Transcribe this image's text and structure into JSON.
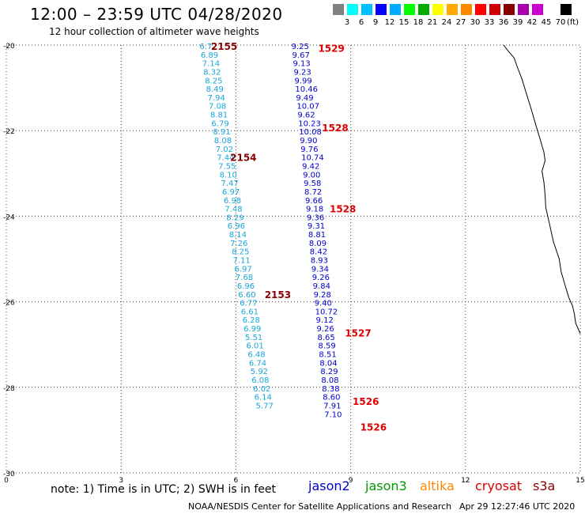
{
  "title": "12:00 – 23:59 UTC 04/28/2020",
  "subtitle": "12 hour collection of altimeter wave heights",
  "legend": {
    "colors": [
      "#808080",
      "#00ffff",
      "#00bfff",
      "#0000ff",
      "#00aaff",
      "#00ff00",
      "#00aa00",
      "#ffff00",
      "#ffaa00",
      "#ff8800",
      "#ff0000",
      "#cc0000",
      "#880000",
      "#aa00aa",
      "#cc00cc",
      "#ffffff",
      "#000000"
    ],
    "labels": [
      "3",
      "6",
      "9",
      "12",
      "15",
      "18",
      "21",
      "24",
      "27",
      "30",
      "33",
      "36",
      "39",
      "42",
      "45",
      "70"
    ],
    "unit": "(ft)"
  },
  "axes": {
    "x_ticks": [
      "0",
      "3",
      "6",
      "9",
      "12",
      "15"
    ],
    "y_ticks": [
      "-20",
      "-22",
      "-24",
      "-26",
      "-28",
      "-30"
    ]
  },
  "tracks": [
    {
      "satellite": "cryosat",
      "color": "#18a6d8",
      "values": [
        {
          "lon": 5.05,
          "lat": -20.0,
          "swh": "6.77"
        },
        {
          "lon": 5.08,
          "lat": -20.2,
          "swh": "6.89"
        },
        {
          "lon": 5.12,
          "lat": -20.4,
          "swh": "7.14"
        },
        {
          "lon": 5.15,
          "lat": -20.6,
          "swh": "8.32"
        },
        {
          "lon": 5.19,
          "lat": -20.8,
          "swh": "8.25"
        },
        {
          "lon": 5.22,
          "lat": -21.0,
          "swh": "8.49"
        },
        {
          "lon": 5.26,
          "lat": -21.2,
          "swh": "7.94"
        },
        {
          "lon": 5.29,
          "lat": -21.4,
          "swh": "7.08"
        },
        {
          "lon": 5.33,
          "lat": -21.6,
          "swh": "8.81"
        },
        {
          "lon": 5.36,
          "lat": -21.8,
          "swh": "6.79"
        },
        {
          "lon": 5.4,
          "lat": -22.0,
          "swh": "8.91"
        },
        {
          "lon": 5.43,
          "lat": -22.2,
          "swh": "8.08"
        },
        {
          "lon": 5.47,
          "lat": -22.4,
          "swh": "7.02"
        },
        {
          "lon": 5.5,
          "lat": -22.6,
          "swh": "7.44"
        },
        {
          "lon": 5.54,
          "lat": -22.8,
          "swh": "7.55"
        },
        {
          "lon": 5.57,
          "lat": -23.0,
          "swh": "8.10"
        },
        {
          "lon": 5.61,
          "lat": -23.2,
          "swh": "7.47"
        },
        {
          "lon": 5.64,
          "lat": -23.4,
          "swh": "6.97"
        },
        {
          "lon": 5.68,
          "lat": -23.6,
          "swh": "6.98"
        },
        {
          "lon": 5.71,
          "lat": -23.8,
          "swh": "7.48"
        },
        {
          "lon": 5.75,
          "lat": -24.0,
          "swh": "8.29"
        },
        {
          "lon": 5.78,
          "lat": -24.2,
          "swh": "6.96"
        },
        {
          "lon": 5.82,
          "lat": -24.4,
          "swh": "8.14"
        },
        {
          "lon": 5.85,
          "lat": -24.6,
          "swh": "7.26"
        },
        {
          "lon": 5.89,
          "lat": -24.8,
          "swh": "8.25"
        },
        {
          "lon": 5.92,
          "lat": -25.0,
          "swh": "7.11"
        },
        {
          "lon": 5.96,
          "lat": -25.2,
          "swh": "6.97"
        },
        {
          "lon": 5.99,
          "lat": -25.4,
          "swh": "7.68"
        },
        {
          "lon": 6.03,
          "lat": -25.6,
          "swh": "6.96"
        },
        {
          "lon": 6.06,
          "lat": -25.8,
          "swh": "6.60"
        },
        {
          "lon": 6.1,
          "lat": -26.0,
          "swh": "6.77"
        },
        {
          "lon": 6.13,
          "lat": -26.2,
          "swh": "6.61"
        },
        {
          "lon": 6.17,
          "lat": -26.4,
          "swh": "6.28"
        },
        {
          "lon": 6.2,
          "lat": -26.6,
          "swh": "6.99"
        },
        {
          "lon": 6.24,
          "lat": -26.8,
          "swh": "5.51"
        },
        {
          "lon": 6.27,
          "lat": -27.0,
          "swh": "6.01"
        },
        {
          "lon": 6.31,
          "lat": -27.2,
          "swh": "6.48"
        },
        {
          "lon": 6.34,
          "lat": -27.4,
          "swh": "6.74"
        },
        {
          "lon": 6.38,
          "lat": -27.6,
          "swh": "5.92"
        },
        {
          "lon": 6.41,
          "lat": -27.8,
          "swh": "6.08"
        },
        {
          "lon": 6.45,
          "lat": -28.0,
          "swh": "6.02"
        },
        {
          "lon": 6.48,
          "lat": -28.2,
          "swh": "6.14"
        },
        {
          "lon": 6.52,
          "lat": -28.4,
          "swh": "5.77"
        }
      ]
    },
    {
      "satellite": "jason2",
      "color": "#0000cc",
      "values": [
        {
          "lon": 7.45,
          "lat": -20.0,
          "swh": "9.25"
        },
        {
          "lon": 7.47,
          "lat": -20.2,
          "swh": "9.67"
        },
        {
          "lon": 7.49,
          "lat": -20.4,
          "swh": "9.13"
        },
        {
          "lon": 7.51,
          "lat": -20.6,
          "swh": "9.23"
        },
        {
          "lon": 7.53,
          "lat": -20.8,
          "swh": "9.99"
        },
        {
          "lon": 7.55,
          "lat": -21.0,
          "swh": "10.46"
        },
        {
          "lon": 7.57,
          "lat": -21.2,
          "swh": "9.49"
        },
        {
          "lon": 7.59,
          "lat": -21.4,
          "swh": "10.07"
        },
        {
          "lon": 7.61,
          "lat": -21.6,
          "swh": "9.62"
        },
        {
          "lon": 7.63,
          "lat": -21.8,
          "swh": "10.23"
        },
        {
          "lon": 7.65,
          "lat": -22.0,
          "swh": "10.08"
        },
        {
          "lon": 7.67,
          "lat": -22.2,
          "swh": "9.90"
        },
        {
          "lon": 7.69,
          "lat": -22.4,
          "swh": "9.76"
        },
        {
          "lon": 7.71,
          "lat": -22.6,
          "swh": "10.74"
        },
        {
          "lon": 7.73,
          "lat": -22.8,
          "swh": "9.42"
        },
        {
          "lon": 7.75,
          "lat": -23.0,
          "swh": "9.00"
        },
        {
          "lon": 7.77,
          "lat": -23.2,
          "swh": "9.58"
        },
        {
          "lon": 7.79,
          "lat": -23.4,
          "swh": "8.72"
        },
        {
          "lon": 7.81,
          "lat": -23.6,
          "swh": "9.66"
        },
        {
          "lon": 7.83,
          "lat": -23.8,
          "swh": "9.18"
        },
        {
          "lon": 7.85,
          "lat": -24.0,
          "swh": "9.36"
        },
        {
          "lon": 7.87,
          "lat": -24.2,
          "swh": "9.31"
        },
        {
          "lon": 7.89,
          "lat": -24.4,
          "swh": "8.81"
        },
        {
          "lon": 7.91,
          "lat": -24.6,
          "swh": "8.09"
        },
        {
          "lon": 7.93,
          "lat": -24.8,
          "swh": "8.42"
        },
        {
          "lon": 7.95,
          "lat": -25.0,
          "swh": "8.93"
        },
        {
          "lon": 7.97,
          "lat": -25.2,
          "swh": "9.34"
        },
        {
          "lon": 7.99,
          "lat": -25.4,
          "swh": "9.26"
        },
        {
          "lon": 8.01,
          "lat": -25.6,
          "swh": "9.84"
        },
        {
          "lon": 8.03,
          "lat": -25.8,
          "swh": "9.28"
        },
        {
          "lon": 8.05,
          "lat": -26.0,
          "swh": "9.40"
        },
        {
          "lon": 8.07,
          "lat": -26.2,
          "swh": "10.72"
        },
        {
          "lon": 8.09,
          "lat": -26.4,
          "swh": "9.12"
        },
        {
          "lon": 8.11,
          "lat": -26.6,
          "swh": "9.26"
        },
        {
          "lon": 8.13,
          "lat": -26.8,
          "swh": "8.65"
        },
        {
          "lon": 8.15,
          "lat": -27.0,
          "swh": "8.59"
        },
        {
          "lon": 8.17,
          "lat": -27.2,
          "swh": "8.51"
        },
        {
          "lon": 8.19,
          "lat": -27.4,
          "swh": "8.04"
        },
        {
          "lon": 8.21,
          "lat": -27.6,
          "swh": "8.29"
        },
        {
          "lon": 8.23,
          "lat": -27.8,
          "swh": "8.08"
        },
        {
          "lon": 8.25,
          "lat": -28.0,
          "swh": "8.38"
        },
        {
          "lon": 8.27,
          "lat": -28.2,
          "swh": "8.60"
        },
        {
          "lon": 8.29,
          "lat": -28.4,
          "swh": "7.91"
        },
        {
          "lon": 8.31,
          "lat": -28.6,
          "swh": "7.10"
        }
      ]
    }
  ],
  "time_labels": [
    {
      "text": "2155",
      "lon": 5.35,
      "lat": -20.0,
      "color": "#8b0000"
    },
    {
      "text": "2154",
      "lon": 5.85,
      "lat": -22.6,
      "color": "#8b0000"
    },
    {
      "text": "2153",
      "lon": 6.75,
      "lat": -25.8,
      "color": "#8b0000"
    },
    {
      "text": "1529",
      "lon": 8.15,
      "lat": -20.05,
      "color": "#dd0000"
    },
    {
      "text": "1528",
      "lon": 8.25,
      "lat": -21.9,
      "color": "#dd0000"
    },
    {
      "text": "1528",
      "lon": 8.45,
      "lat": -23.8,
      "color": "#dd0000"
    },
    {
      "text": "1527",
      "lon": 8.85,
      "lat": -26.7,
      "color": "#dd0000"
    },
    {
      "text": "1526",
      "lon": 9.05,
      "lat": -28.3,
      "color": "#dd0000"
    },
    {
      "text": "1526",
      "lon": 9.25,
      "lat": -28.9,
      "color": "#dd0000"
    }
  ],
  "note": "note:  1) Time is in UTC;  2) SWH is in feet",
  "satellites": [
    {
      "name": "jason2",
      "color": "#0000cc"
    },
    {
      "name": "jason3",
      "color": "#009900"
    },
    {
      "name": "altika",
      "color": "#ff8800"
    },
    {
      "name": "cryosat",
      "color": "#dd0000"
    },
    {
      "name": "s3a",
      "color": "#8b0000"
    }
  ],
  "credit": "NOAA/NESDIS Center for Satellite Applications and Research",
  "timestamp": "Apr 29 12:27:46 UTC 2020"
}
